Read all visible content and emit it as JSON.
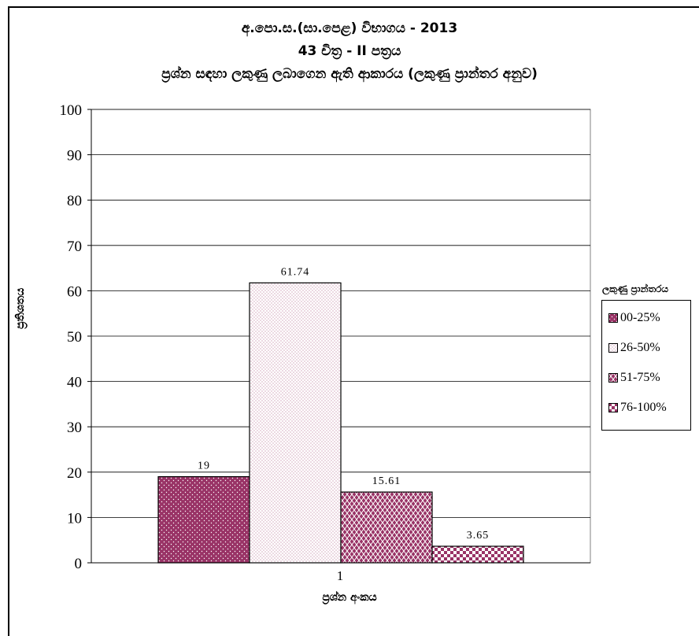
{
  "chart_data": {
    "type": "bar",
    "title": "අ.පො.ස.(සා.පෙළ) විභාගය - 2013",
    "subtitle_1": "43 චිත්‍ර  - II පත්‍රය",
    "subtitle_2": "ප්‍රශ්න සඳහා ලකුණු ලබාගෙන ඇති ආකාරය (ලකුණු ප්‍රාන්තර අනුව)",
    "xlabel": "ප්‍රශ්න අංකය",
    "ylabel": "ප්‍රතිශතය",
    "categories": [
      "1"
    ],
    "ylim": [
      0,
      100
    ],
    "y_ticks": [
      0,
      10,
      20,
      30,
      40,
      50,
      60,
      70,
      80,
      90,
      100
    ],
    "grid": true,
    "legend_title": "ලකුණු ප්‍රාන්තරය",
    "legend_position": "right",
    "series": [
      {
        "name": "00-25%",
        "values": [
          19
        ],
        "label": "19",
        "color": "#993366",
        "pattern": "white-dots"
      },
      {
        "name": "26-50%",
        "values": [
          61.74
        ],
        "label": "61.74",
        "color": "#ffffff",
        "pattern": "maroon-dots"
      },
      {
        "name": "51-75%",
        "values": [
          15.61
        ],
        "label": "15.61",
        "color": "#993366",
        "pattern": "white-weave"
      },
      {
        "name": "76-100%",
        "values": [
          3.65
        ],
        "label": "3.65",
        "color": "#993366",
        "pattern": "checker"
      }
    ]
  }
}
